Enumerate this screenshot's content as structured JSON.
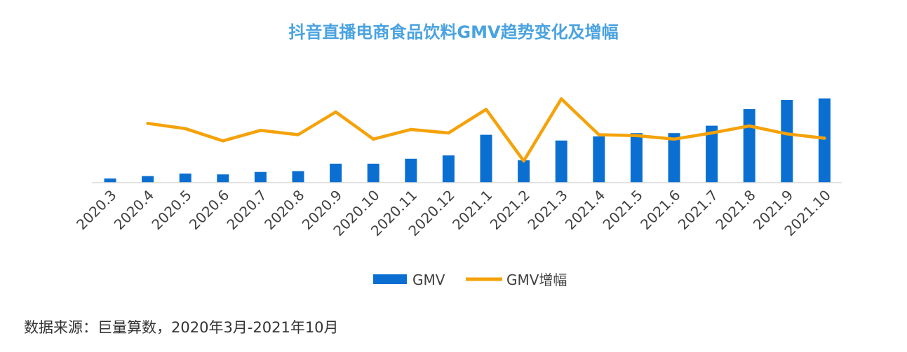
{
  "chart_data": {
    "type": "bar",
    "title": "抖音直播电商食品饮料GMV趋势变化及增幅",
    "categories": [
      "2020.3",
      "2020.4",
      "2020.5",
      "2020.6",
      "2020.7",
      "2020.8",
      "2020.9",
      "2020.10",
      "2020.11",
      "2020.12",
      "2021.1",
      "2021.2",
      "2021.3",
      "2021.4",
      "2021.5",
      "2021.6",
      "2021.7",
      "2021.8",
      "2021.9",
      "2021.10"
    ],
    "series": [
      {
        "name": "GMV",
        "type": "bar",
        "color": "#0a6fd1",
        "values": [
          5,
          8,
          11,
          10,
          13,
          14,
          23,
          23,
          29,
          33,
          58,
          27,
          51,
          56,
          60,
          60,
          69,
          89,
          100,
          102
        ]
      },
      {
        "name": "GMV增幅",
        "type": "line",
        "color": "#f5a20a",
        "values": [
          null,
          63,
          57,
          43,
          55,
          50,
          76,
          45,
          56,
          52,
          79,
          20,
          91,
          50,
          49,
          45,
          52,
          60,
          51,
          46
        ]
      }
    ],
    "legend": "bottom-center",
    "grid": false,
    "xlabel": "",
    "ylabel": ""
  },
  "source_note": "数据来源：巨量算数，2020年3月-2021年10月"
}
